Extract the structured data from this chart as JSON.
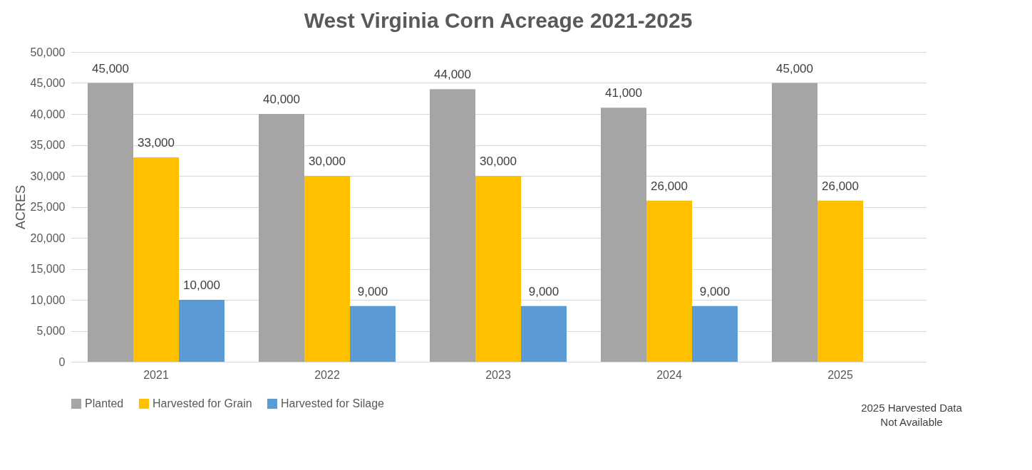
{
  "chart_data": {
    "type": "bar",
    "title": "West Virginia Corn Acreage 2021-2025",
    "ylabel": "ACRES",
    "categories": [
      "2021",
      "2022",
      "2023",
      "2024",
      "2025"
    ],
    "series": [
      {
        "name": "Planted",
        "color": "#a5a5a5",
        "values": [
          45000,
          40000,
          44000,
          41000,
          45000
        ],
        "value_labels": [
          "45,000",
          "40,000",
          "44,000",
          "41,000",
          "45,000"
        ]
      },
      {
        "name": "Harvested for Grain",
        "color": "#ffc000",
        "values": [
          33000,
          30000,
          30000,
          26000,
          26000
        ],
        "value_labels": [
          "33,000",
          "30,000",
          "30,000",
          "26,000",
          "26,000"
        ]
      },
      {
        "name": "Harvested for Silage",
        "color": "#5b9bd5",
        "values": [
          10000,
          9000,
          9000,
          9000,
          null
        ],
        "value_labels": [
          "10,000",
          "9,000",
          "9,000",
          "9,000",
          null
        ]
      }
    ],
    "ylim": [
      0,
      50000
    ],
    "yticks": [
      0,
      {
        "value": 5000,
        "label": "5,000"
      },
      {
        "value": 10000,
        "label": "10,000"
      },
      {
        "value": 15000,
        "label": "15,000"
      },
      {
        "value": 20000,
        "label": "20,000"
      },
      {
        "value": 25000,
        "label": "25,000"
      },
      {
        "value": 30000,
        "label": "30,000"
      },
      {
        "value": 35000,
        "label": "35,000"
      },
      {
        "value": 40000,
        "label": "40,000"
      },
      {
        "value": 45000,
        "label": "45,000"
      },
      {
        "value": 50000,
        "label": "50,000"
      }
    ],
    "grid": "y",
    "legend": "bottom",
    "annotations": [
      "2025 Harvested Data Not Available"
    ]
  }
}
